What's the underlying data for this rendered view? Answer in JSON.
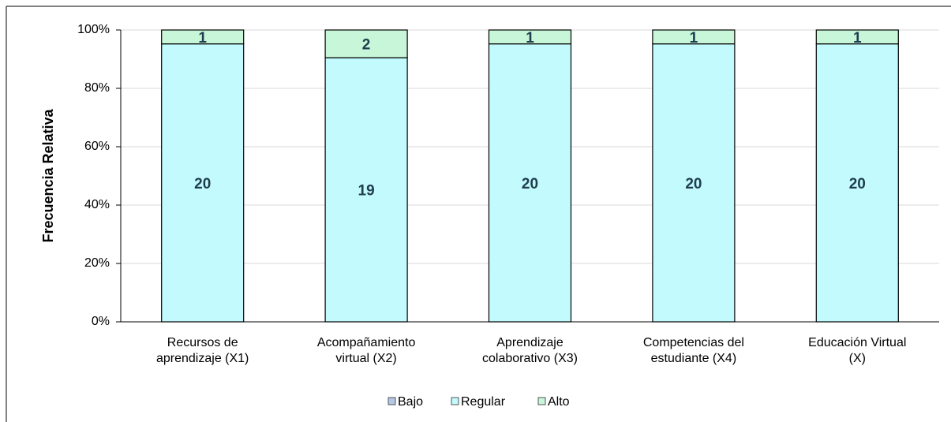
{
  "chart_data": {
    "type": "bar",
    "stacking": "percent",
    "ylabel": "Frecuencia Relativa",
    "categories": [
      [
        "Recursos de",
        "aprendizaje (X1)"
      ],
      [
        "Acompañamiento",
        "virtual (X2)"
      ],
      [
        "Aprendizaje",
        "colaborativo (X3)"
      ],
      [
        "Competencias del",
        "estudiante (X4)"
      ],
      [
        "Educación Virtual",
        "(X)"
      ]
    ],
    "series": [
      {
        "name": "Bajo",
        "color": "#b4c7e7",
        "values": [
          0,
          0,
          0,
          0,
          0
        ]
      },
      {
        "name": "Regular",
        "color": "#c2fafd",
        "values": [
          20,
          19,
          20,
          20,
          20
        ]
      },
      {
        "name": "Alto",
        "color": "#c8f6d9",
        "values": [
          1,
          2,
          1,
          1,
          1
        ]
      }
    ],
    "ylim": [
      0,
      100
    ],
    "yticks": [
      {
        "value": 0,
        "label": "0%"
      },
      {
        "value": 20,
        "label": "20%"
      },
      {
        "value": 40,
        "label": "40%"
      },
      {
        "value": 60,
        "label": "60%"
      },
      {
        "value": 80,
        "label": "80%"
      },
      {
        "value": 100,
        "label": "100%"
      }
    ],
    "grid": true,
    "legend": "bottom"
  }
}
